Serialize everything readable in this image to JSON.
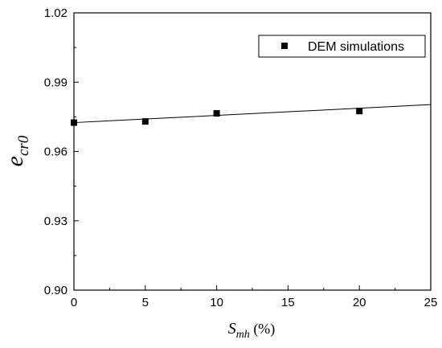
{
  "chart_data": {
    "type": "scatter",
    "title": "",
    "xlim": [
      0,
      25
    ],
    "ylim": [
      0.9,
      1.02
    ],
    "x_ticks": [
      "0",
      "5",
      "10",
      "15",
      "20",
      "25"
    ],
    "y_ticks": [
      "0.90",
      "0.93",
      "0.96",
      "0.99",
      "1.02"
    ],
    "xlabel": {
      "main": "S",
      "sub": "mh",
      "unit": " (%)"
    },
    "ylabel": {
      "main": "e",
      "sub": "cr0"
    },
    "series": [
      {
        "name": "DEM simulations",
        "marker": "square",
        "color": "#000000",
        "x": [
          0,
          5,
          10,
          20
        ],
        "y": [
          0.9725,
          0.973,
          0.9765,
          0.9775
        ]
      }
    ],
    "fit_line": {
      "x": [
        0,
        25
      ],
      "y": [
        0.9725,
        0.9803
      ],
      "color": "#000000"
    },
    "legend_position": "top-right",
    "grid": false
  }
}
